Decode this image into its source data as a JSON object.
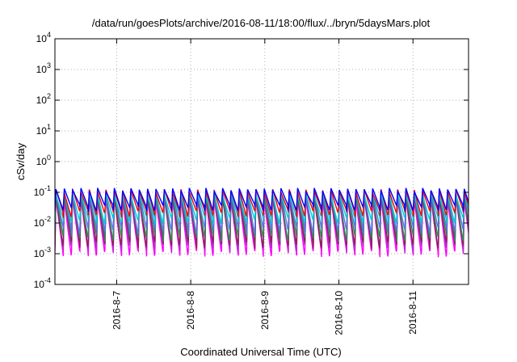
{
  "chart_data": {
    "type": "line",
    "title": "/data/run/goesPlots/archive/2016-08-11/18:00/flux/../bryn/5daysMars.plot",
    "xlabel": "Coordinated Universal Time (UTC)",
    "ylabel": "cSv/day",
    "yscale": "log",
    "ylim": [
      0.0001,
      10000
    ],
    "xlim": [
      "2016-08-06T04:00",
      "2016-08-11T18:00"
    ],
    "grid": true,
    "legend": "none",
    "x_ticks": [
      "2016-8-7",
      "2016-8-8",
      "2016-8-9",
      "2016-8-10",
      "2016-8-11"
    ],
    "y_ticks": [
      {
        "base": "10",
        "exp": "-4"
      },
      {
        "base": "10",
        "exp": "-3"
      },
      {
        "base": "10",
        "exp": "-2"
      },
      {
        "base": "10",
        "exp": "-1"
      },
      {
        "base": "10",
        "exp": "0"
      },
      {
        "base": "10",
        "exp": "1"
      },
      {
        "base": "10",
        "exp": "2"
      },
      {
        "base": "10",
        "exp": "3"
      },
      {
        "base": "10",
        "exp": "4"
      }
    ],
    "period_hours": 2.7,
    "series": [
      {
        "color": "#ff00ff",
        "peak": 0.06,
        "trough": 0.001
      },
      {
        "color": "#aa33cc",
        "peak": 0.07,
        "trough": 0.0016
      },
      {
        "color": "#8b2252",
        "peak": 0.075,
        "trough": 0.002
      },
      {
        "color": "#2e8b57",
        "peak": 0.08,
        "trough": 0.0035
      },
      {
        "color": "#5577ee",
        "peak": 0.09,
        "trough": 0.006
      },
      {
        "color": "#00ced1",
        "peak": 0.085,
        "trough": 0.012
      },
      {
        "color": "#ff0000",
        "peak": 0.11,
        "trough": 0.02
      },
      {
        "color": "#0000ff",
        "peak": 0.12,
        "trough": 0.03
      }
    ]
  }
}
